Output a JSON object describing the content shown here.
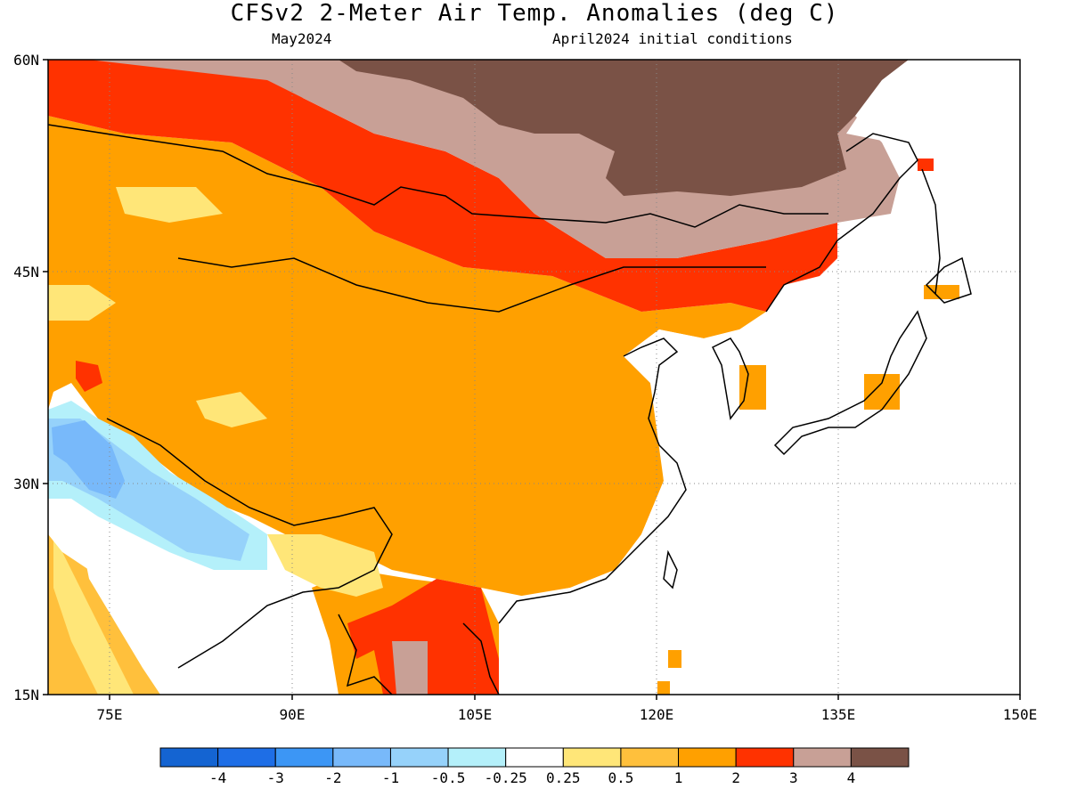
{
  "title": "CFSv2 2-Meter Air Temp. Anomalies (deg C)",
  "subtitle_left": "May2024",
  "subtitle_right": "April2024 initial conditions",
  "lat_labels": [
    "60N",
    "45N",
    "30N",
    "15N"
  ],
  "lon_labels": [
    "75E",
    "90E",
    "105E",
    "120E",
    "135E",
    "150E"
  ],
  "colorbar": {
    "labels": [
      "-4",
      "-3",
      "-2",
      "-1",
      "-0.5",
      "-0.25",
      "0.25",
      "0.5",
      "1",
      "2",
      "3",
      "4"
    ],
    "colors": [
      "#1464d2",
      "#1e6ee6",
      "#3c96f5",
      "#78b9fa",
      "#96d2fa",
      "#b4f0fa",
      "#ffffff",
      "#ffe678",
      "#ffc03c",
      "#ffa000",
      "#ff3200",
      "#c8a096",
      "#7a5246"
    ]
  },
  "map": {
    "extent": {
      "lon_min": 70,
      "lon_max": 150,
      "lat_min": 15,
      "lat_max": 60
    },
    "grid_lines": "dotted",
    "region": "East Asia",
    "variable": "2-meter air temperature anomaly",
    "units": "deg C"
  }
}
